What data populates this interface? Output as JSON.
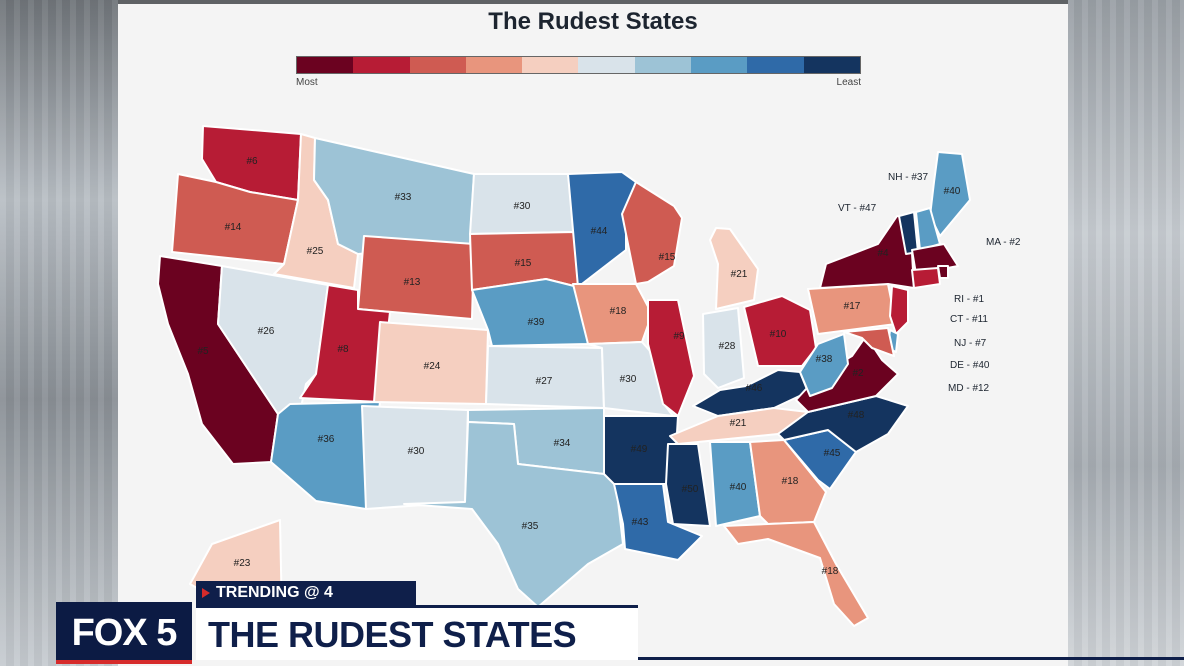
{
  "map": {
    "title": "The Rudest States",
    "legend": {
      "most_label": "Most",
      "least_label": "Least",
      "colors": [
        "#6b0220",
        "#b71c35",
        "#cf5b52",
        "#e8957d",
        "#f5cfc0",
        "#d9e3ea",
        "#9dc3d6",
        "#5a9cc4",
        "#2f6aa8",
        "#14345f"
      ]
    },
    "states": [
      {
        "abbr": "WA",
        "rank": "#6",
        "color": "#b71c35"
      },
      {
        "abbr": "OR",
        "rank": "#14",
        "color": "#cf5b52"
      },
      {
        "abbr": "CA",
        "rank": "#5",
        "color": "#6b0220"
      },
      {
        "abbr": "ID",
        "rank": "#25",
        "color": "#f5cfc0"
      },
      {
        "abbr": "NV",
        "rank": "#26",
        "color": "#d9e3ea"
      },
      {
        "abbr": "MT",
        "rank": "#33",
        "color": "#9dc3d6"
      },
      {
        "abbr": "WY",
        "rank": "#13",
        "color": "#cf5b52"
      },
      {
        "abbr": "UT",
        "rank": "#8",
        "color": "#b71c35"
      },
      {
        "abbr": "AZ",
        "rank": "#36",
        "color": "#5a9cc4"
      },
      {
        "abbr": "CO",
        "rank": "#24",
        "color": "#f5cfc0"
      },
      {
        "abbr": "NM",
        "rank": "#30",
        "color": "#d9e3ea"
      },
      {
        "abbr": "ND",
        "rank": "#30",
        "color": "#d9e3ea"
      },
      {
        "abbr": "SD",
        "rank": "#15",
        "color": "#cf5b52"
      },
      {
        "abbr": "NE",
        "rank": "#39",
        "color": "#5a9cc4"
      },
      {
        "abbr": "KS",
        "rank": "#27",
        "color": "#d9e3ea"
      },
      {
        "abbr": "OK",
        "rank": "#34",
        "color": "#9dc3d6"
      },
      {
        "abbr": "TX",
        "rank": "#35",
        "color": "#9dc3d6"
      },
      {
        "abbr": "MN",
        "rank": "#44",
        "color": "#2f6aa8"
      },
      {
        "abbr": "IA",
        "rank": "#18",
        "color": "#e8957d"
      },
      {
        "abbr": "MO",
        "rank": "#30",
        "color": "#d9e3ea"
      },
      {
        "abbr": "AR",
        "rank": "#49",
        "color": "#14345f"
      },
      {
        "abbr": "LA",
        "rank": "#43",
        "color": "#2f6aa8"
      },
      {
        "abbr": "WI",
        "rank": "#15",
        "color": "#cf5b52"
      },
      {
        "abbr": "MI",
        "rank": "#21",
        "color": "#f5cfc0"
      },
      {
        "abbr": "IL",
        "rank": "#9",
        "color": "#b71c35"
      },
      {
        "abbr": "IN",
        "rank": "#28",
        "color": "#d9e3ea"
      },
      {
        "abbr": "OH",
        "rank": "#10",
        "color": "#b71c35"
      },
      {
        "abbr": "KY",
        "rank": "#46",
        "color": "#14345f"
      },
      {
        "abbr": "TN",
        "rank": "#21",
        "color": "#f5cfc0"
      },
      {
        "abbr": "MS",
        "rank": "#50",
        "color": "#14345f"
      },
      {
        "abbr": "AL",
        "rank": "#40",
        "color": "#5a9cc4"
      },
      {
        "abbr": "GA",
        "rank": "#18",
        "color": "#e8957d"
      },
      {
        "abbr": "FL",
        "rank": "#18",
        "color": "#e8957d"
      },
      {
        "abbr": "SC",
        "rank": "#45",
        "color": "#2f6aa8"
      },
      {
        "abbr": "NC",
        "rank": "#48",
        "color": "#14345f"
      },
      {
        "abbr": "VA",
        "rank": "#2",
        "color": "#6b0220"
      },
      {
        "abbr": "WV",
        "rank": "#38",
        "color": "#5a9cc4"
      },
      {
        "abbr": "PA",
        "rank": "#17",
        "color": "#e8957d"
      },
      {
        "abbr": "NY",
        "rank": "#4",
        "color": "#6b0220"
      },
      {
        "abbr": "ME",
        "rank": "#40",
        "color": "#5a9cc4"
      },
      {
        "abbr": "AK",
        "rank": "#23",
        "color": "#f5cfc0"
      },
      {
        "abbr": "VT",
        "rank": "",
        "color": "#14345f"
      },
      {
        "abbr": "NH",
        "rank": "",
        "color": "#5a9cc4"
      },
      {
        "abbr": "MA",
        "rank": "",
        "color": "#6b0220"
      },
      {
        "abbr": "RI",
        "rank": "",
        "color": "#6b0220"
      },
      {
        "abbr": "CT",
        "rank": "",
        "color": "#b71c35"
      },
      {
        "abbr": "NJ",
        "rank": "",
        "color": "#b71c35"
      },
      {
        "abbr": "DE",
        "rank": "",
        "color": "#5a9cc4"
      },
      {
        "abbr": "MD",
        "rank": "",
        "color": "#cf5b52"
      }
    ],
    "callouts": {
      "nh": "NH - #37",
      "vt": "VT - #47",
      "ma": "MA - #2",
      "ri": "RI - #1",
      "ct": "CT - #11",
      "nj": "NJ - #7",
      "de": "DE - #40",
      "md": "MD - #12"
    }
  },
  "broadcast": {
    "trending_label": "TRENDING @ 4",
    "logo_text": "FOX 5",
    "headline": "THE RUDEST STATES"
  }
}
